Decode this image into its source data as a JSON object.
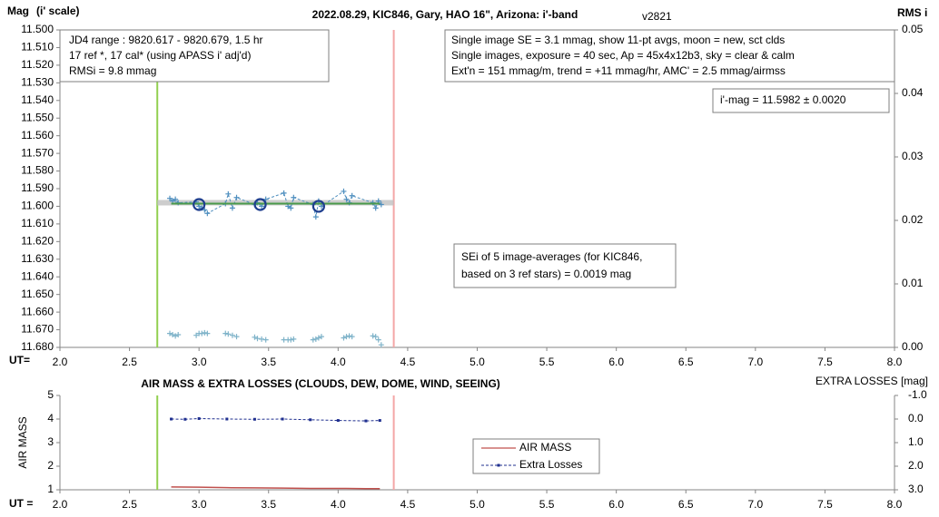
{
  "chart_data": [
    {
      "type": "scatter",
      "title": "2022.08.29, KIC846, Gary, HAO 16\", Arizona: i'-band",
      "subtitle": "v2821",
      "y_label": "Mag",
      "y_label_note": "(i' scale)",
      "y2_label": "RMS i",
      "x_label": "UT=",
      "xlim": [
        2,
        8
      ],
      "xticks": [
        {
          "value": 2,
          "label": "2.0"
        },
        2.5,
        {
          "value": 3,
          "label": "3.0"
        },
        3.5,
        {
          "value": 4,
          "label": "4.0"
        },
        4.5,
        {
          "value": 5,
          "label": "5.0"
        },
        5.5,
        {
          "value": 6,
          "label": "6.0"
        },
        6.5,
        {
          "value": 7,
          "label": "7.0"
        },
        7.5,
        {
          "value": 8,
          "label": "8.0"
        }
      ],
      "ylim": [
        11.5,
        11.68
      ],
      "y_inverted": true,
      "yticks": [
        {
          "value": 11.5,
          "label": "11.500"
        },
        {
          "value": 11.51,
          "label": "11.510"
        },
        {
          "value": 11.52,
          "label": "11.520"
        },
        {
          "value": 11.53,
          "label": "11.530"
        },
        {
          "value": 11.54,
          "label": "11.540"
        },
        {
          "value": 11.55,
          "label": "11.550"
        },
        {
          "value": 11.56,
          "label": "11.560"
        },
        {
          "value": 11.57,
          "label": "11.570"
        },
        {
          "value": 11.58,
          "label": "11.580"
        },
        {
          "value": 11.59,
          "label": "11.590"
        },
        {
          "value": 11.6,
          "label": "11.600"
        },
        {
          "value": 11.61,
          "label": "11.610"
        },
        {
          "value": 11.62,
          "label": "11.620"
        },
        {
          "value": 11.63,
          "label": "11.630"
        },
        {
          "value": 11.64,
          "label": "11.640"
        },
        {
          "value": 11.65,
          "label": "11.650"
        },
        {
          "value": 11.66,
          "label": "11.660"
        },
        {
          "value": 11.67,
          "label": "11.670"
        },
        {
          "value": 11.68,
          "label": "11.680"
        }
      ],
      "y2lim": [
        0,
        0.05
      ],
      "y2ticks": [
        {
          "value": 0,
          "label": "0.00"
        },
        0.01,
        0.02,
        0.03,
        0.04,
        0.05
      ],
      "grid": false,
      "vlines": [
        {
          "x": 2.7,
          "color": "#92d050"
        },
        {
          "x": 4.4,
          "color": "#f4a6a6"
        }
      ],
      "annotations": [
        {
          "lines": [
            "JD4 range : 9820.617 - 9820.679, 1.5  hr",
            "17 ref *, 17 cal* (using APASS i' adj'd)",
            "RMSi = 9.8 mmag"
          ]
        },
        {
          "lines": [
            "Single image SE = 3.1 mmag, show 11-pt avgs, moon = new, sct clds",
            "Single images, exposure = 40 sec, Ap = 45x4x12b3, sky = clear & calm",
            "Ext'n = 151 mmag/m, trend = +11 mmag/hr, AMC' = 2.5 mmag/airmss"
          ]
        },
        {
          "lines": [
            "i'-mag = 11.5982 ± 0.0020"
          ]
        },
        {
          "lines": [
            "SEi of 5 image-averages (for KIC846,",
            "based on 3 ref stars) = 0.0019 mag"
          ]
        }
      ],
      "series": [
        {
          "color": "#c0c0c0",
          "line": "solid",
          "width": 6,
          "marker": "none",
          "x": [
            2.7,
            4.4
          ],
          "values": [
            11.598,
            11.598
          ]
        },
        {
          "color": "#4f8fbf",
          "line": "dashed",
          "width": 1,
          "marker": "plus",
          "x": [
            2.79,
            2.81,
            2.83,
            2.85,
            2.98,
            3.0,
            3.02,
            3.04,
            3.06,
            3.19,
            3.21,
            3.24,
            3.27,
            3.4,
            3.42,
            3.45,
            3.48,
            3.61,
            3.64,
            3.66,
            3.68,
            3.82,
            3.84,
            3.86,
            3.88,
            4.04,
            4.06,
            4.08,
            4.1,
            4.25,
            4.27,
            4.29,
            4.31
          ],
          "values": [
            11.5955,
            11.597,
            11.596,
            11.598,
            11.5975,
            11.6,
            11.601,
            11.602,
            11.604,
            11.5985,
            11.593,
            11.601,
            11.595,
            11.599,
            11.598,
            11.6,
            11.596,
            11.5925,
            11.6,
            11.601,
            11.595,
            11.599,
            11.606,
            11.597,
            11.6,
            11.5915,
            11.596,
            11.598,
            11.594,
            11.598,
            11.601,
            11.597,
            11.599
          ]
        },
        {
          "color": "#4a9a4a",
          "line": "solid",
          "width": 2,
          "marker": "none",
          "x": [
            2.8,
            4.3
          ],
          "values": [
            11.5985,
            11.5985
          ]
        },
        {
          "color": "#1f3f8f",
          "line": "none",
          "marker": "circle",
          "x": [
            3.0,
            3.44,
            3.86
          ],
          "values": [
            11.599,
            11.599,
            11.6
          ]
        },
        {
          "color": "#7fb3c9",
          "line": "none",
          "marker": "plus",
          "axis": "y2",
          "x": [
            2.79,
            2.81,
            2.83,
            2.85,
            2.98,
            3.0,
            3.02,
            3.04,
            3.06,
            3.19,
            3.21,
            3.24,
            3.27,
            3.4,
            3.42,
            3.45,
            3.48,
            3.61,
            3.64,
            3.66,
            3.68,
            3.82,
            3.84,
            3.86,
            3.88,
            4.04,
            4.06,
            4.08,
            4.1,
            4.25,
            4.27,
            4.29,
            4.31
          ],
          "values": [
            0.0022,
            0.002,
            0.0018,
            0.002,
            0.0019,
            0.0022,
            0.0022,
            0.0023,
            0.0022,
            0.0022,
            0.0021,
            0.0019,
            0.0017,
            0.0016,
            0.0014,
            0.0013,
            0.0012,
            0.0012,
            0.0012,
            0.0012,
            0.0013,
            0.0012,
            0.0013,
            0.0015,
            0.0017,
            0.0015,
            0.0017,
            0.0018,
            0.0017,
            0.0018,
            0.0017,
            0.0012,
            0.0004
          ]
        }
      ]
    },
    {
      "type": "line",
      "title": "AIR MASS & EXTRA LOSSES (CLOUDS, DEW, DOME, WIND, SEEING)",
      "y_label": "AIR MASS",
      "y2_label": "EXTRA LOSSES [mag]",
      "x_label": "UT =",
      "xlim": [
        2,
        8
      ],
      "xticks": [
        {
          "value": 2,
          "label": "2.0"
        },
        2.5,
        {
          "value": 3,
          "label": "3.0"
        },
        3.5,
        {
          "value": 4,
          "label": "4.0"
        },
        4.5,
        {
          "value": 5,
          "label": "5.0"
        },
        5.5,
        {
          "value": 6,
          "label": "6.0"
        },
        6.5,
        {
          "value": 7,
          "label": "7.0"
        },
        7.5,
        {
          "value": 8,
          "label": "8.0"
        }
      ],
      "ylim": [
        1,
        5
      ],
      "yticks": [
        1,
        2,
        3,
        4,
        5
      ],
      "y2lim": [
        -1,
        3
      ],
      "y2_inverted": true,
      "y2ticks": [
        {
          "value": -1,
          "label": "-1.0"
        },
        {
          "value": 0,
          "label": "0.0"
        },
        {
          "value": 1,
          "label": "1.0"
        },
        {
          "value": 2,
          "label": "2.0"
        },
        {
          "value": 3,
          "label": "3.0"
        }
      ],
      "grid": false,
      "legend": "center",
      "vlines": [
        {
          "x": 2.7,
          "color": "#92d050"
        },
        {
          "x": 4.4,
          "color": "#f4a6a6"
        }
      ],
      "series": [
        {
          "name": "AIR MASS",
          "color": "#c0504d",
          "line": "solid",
          "width": 1.5,
          "marker": "none",
          "x": [
            2.8,
            3.0,
            3.2,
            3.4,
            3.6,
            3.8,
            4.0,
            4.2,
            4.3
          ],
          "values": [
            1.12,
            1.11,
            1.09,
            1.08,
            1.07,
            1.06,
            1.06,
            1.05,
            1.05
          ]
        },
        {
          "name": "Extra Losses",
          "color": "#1f2f8f",
          "line": "dashed",
          "width": 1,
          "marker": "square",
          "axis": "y2",
          "x": [
            2.8,
            2.9,
            3.0,
            3.2,
            3.4,
            3.6,
            3.8,
            4.0,
            4.2,
            4.3
          ],
          "values": [
            0.0,
            0.01,
            -0.02,
            0.0,
            0.01,
            0.0,
            0.03,
            0.06,
            0.08,
            0.06
          ]
        }
      ]
    }
  ]
}
